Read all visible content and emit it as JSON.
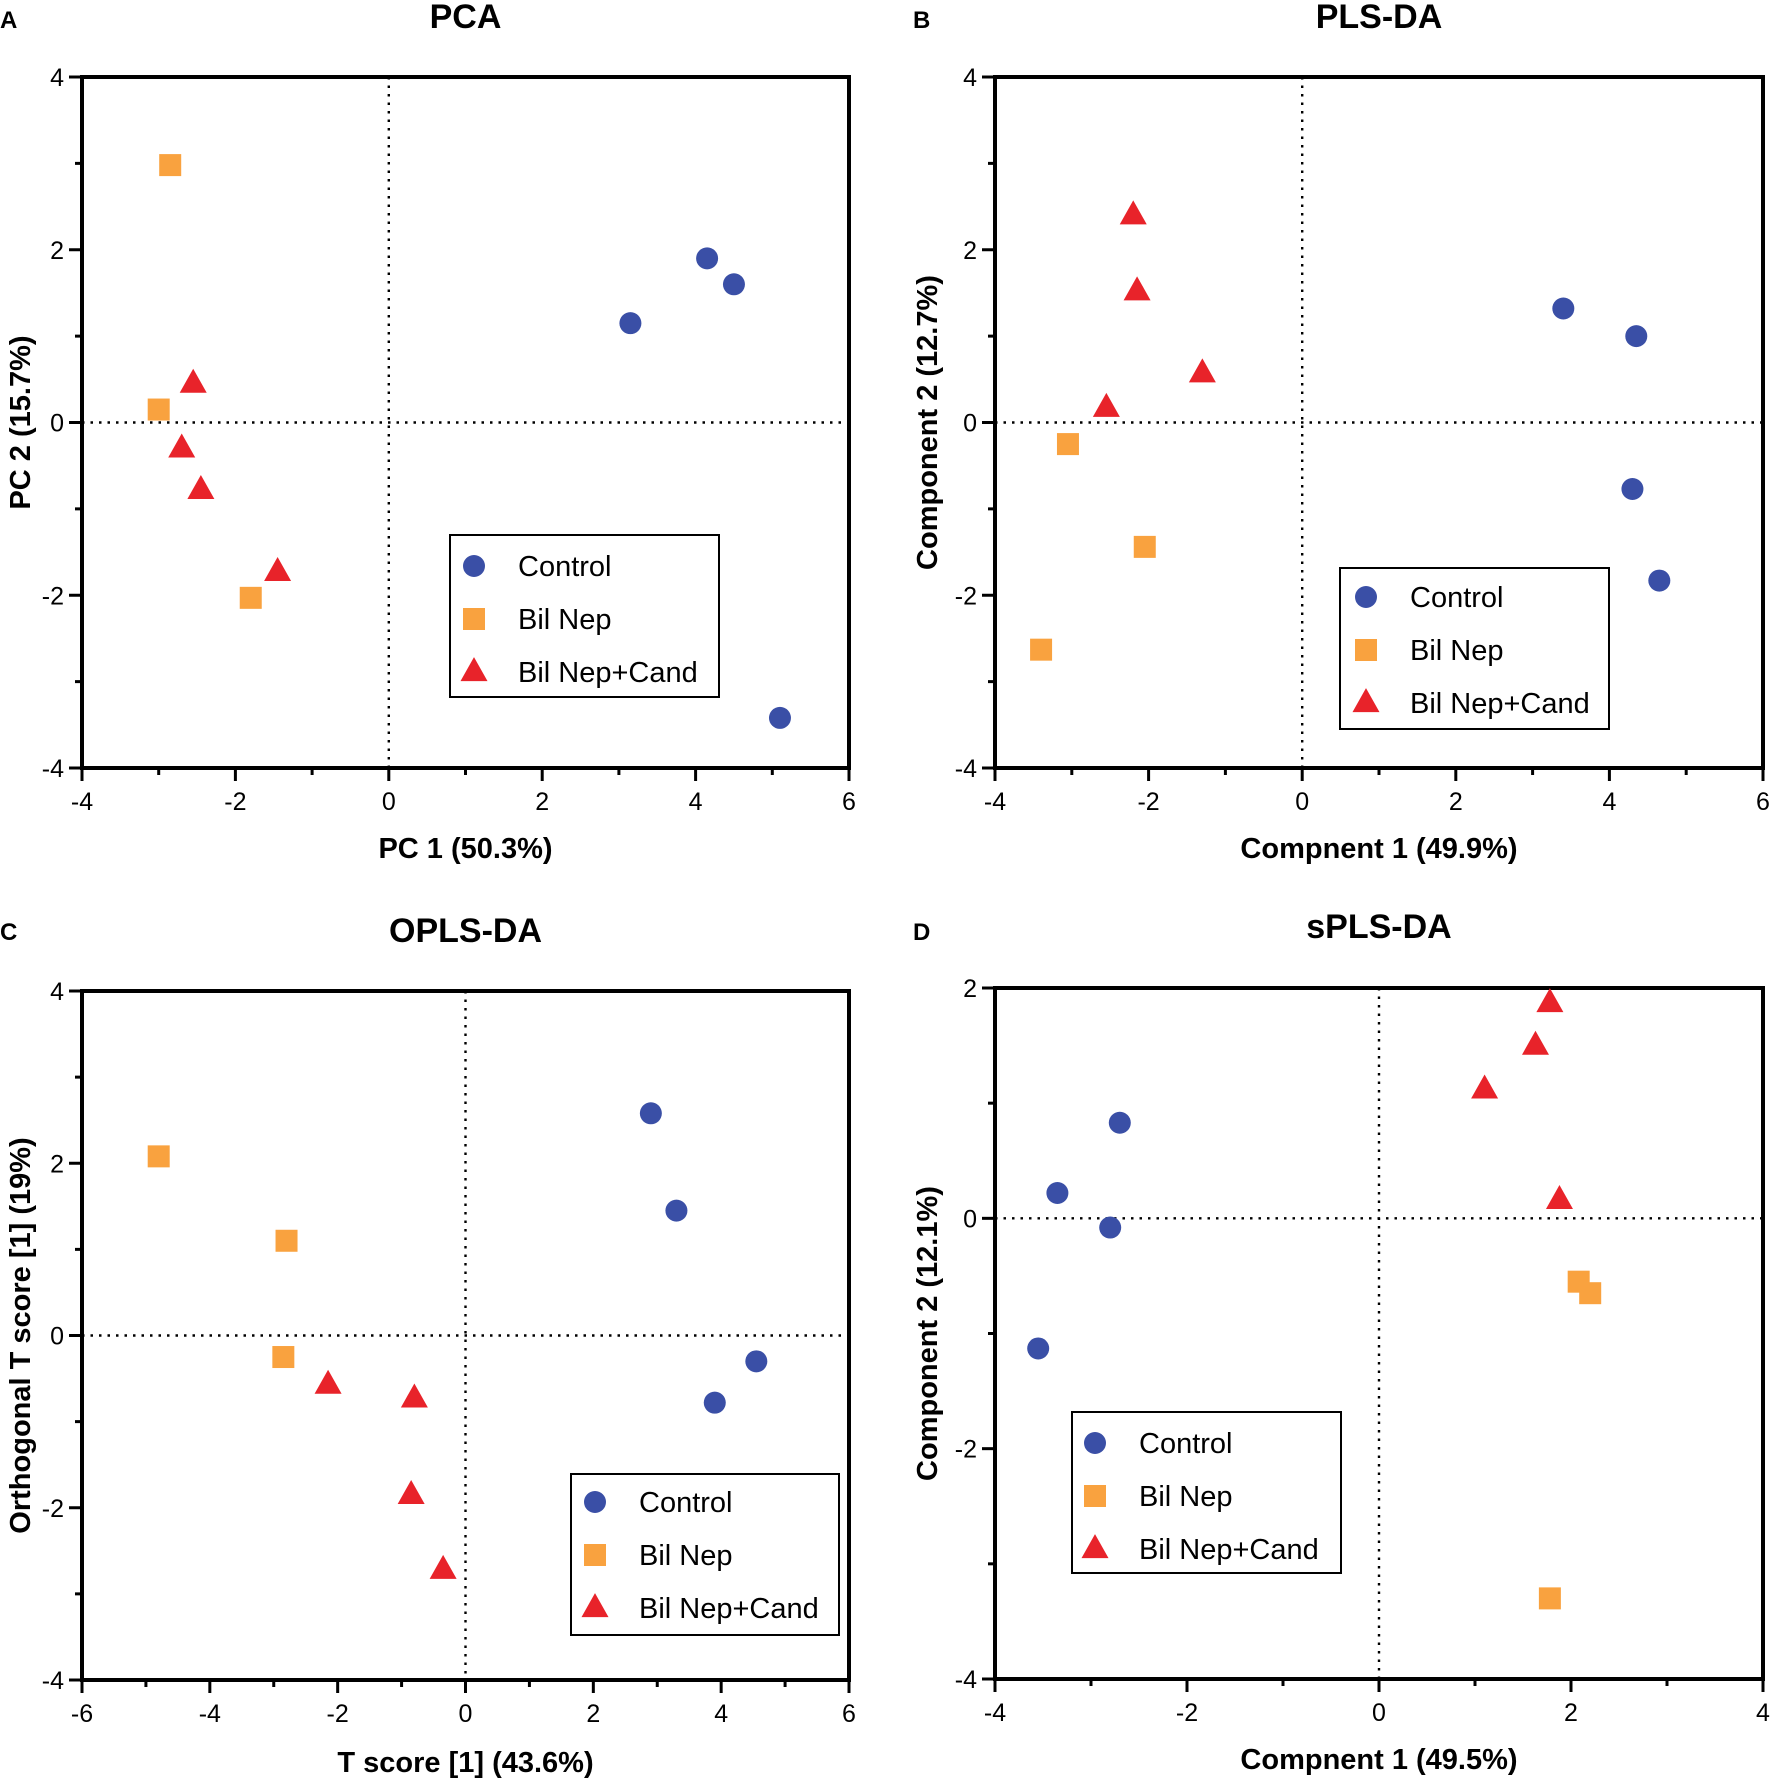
{
  "colors": {
    "control": "#3a4fa6",
    "bil_nep": "#f9a23f",
    "bil_nep_cand": "#e8232a"
  },
  "legend": [
    "Control",
    "Bil Nep",
    "Bil Nep+Cand"
  ],
  "chart_data": [
    {
      "type": "scatter",
      "panel": "A",
      "title": "PCA",
      "xlabel": "PC 1 (50.3%)",
      "ylabel": "PC 2 (15.7%)",
      "xlim": [
        -4,
        6
      ],
      "ylim": [
        -4,
        4
      ],
      "xticks": [
        -4,
        -2,
        0,
        2,
        4,
        6
      ],
      "yticks": [
        4,
        2,
        0,
        -2,
        -4
      ],
      "legend_position": "bottom-right",
      "series": [
        {
          "name": "Control",
          "marker": "circle",
          "points": [
            [
              3.15,
              1.15
            ],
            [
              4.15,
              1.9
            ],
            [
              4.5,
              1.6
            ],
            [
              5.1,
              -3.42
            ]
          ]
        },
        {
          "name": "Bil Nep",
          "marker": "square",
          "points": [
            [
              -2.85,
              2.98
            ],
            [
              -3.0,
              0.15
            ],
            [
              -1.8,
              -2.03
            ]
          ]
        },
        {
          "name": "Bil Nep+Cand",
          "marker": "triangle",
          "points": [
            [
              -2.55,
              0.45
            ],
            [
              -2.7,
              -0.3
            ],
            [
              -2.45,
              -0.78
            ],
            [
              -1.45,
              -1.73
            ]
          ]
        }
      ]
    },
    {
      "type": "scatter",
      "panel": "B",
      "title": "PLS-DA",
      "xlabel": "Compnent 1 (49.9%)",
      "ylabel": "Component 2 (12.7%)",
      "xlim": [
        -4,
        6
      ],
      "ylim": [
        -4,
        4
      ],
      "xticks": [
        -4,
        -2,
        0,
        2,
        4,
        6
      ],
      "yticks": [
        4,
        2,
        0,
        -2,
        -4
      ],
      "legend_position": "bottom-right",
      "series": [
        {
          "name": "Control",
          "marker": "circle",
          "points": [
            [
              3.4,
              1.32
            ],
            [
              4.35,
              1.0
            ],
            [
              4.3,
              -0.77
            ],
            [
              4.65,
              -1.83
            ]
          ]
        },
        {
          "name": "Bil Nep",
          "marker": "square",
          "points": [
            [
              -3.05,
              -0.25
            ],
            [
              -2.05,
              -1.44
            ],
            [
              -3.4,
              -2.63
            ]
          ]
        },
        {
          "name": "Bil Nep+Cand",
          "marker": "triangle",
          "points": [
            [
              -2.2,
              2.4
            ],
            [
              -2.15,
              1.52
            ],
            [
              -1.3,
              0.57
            ],
            [
              -2.55,
              0.17
            ]
          ]
        }
      ]
    },
    {
      "type": "scatter",
      "panel": "C",
      "title": "OPLS-DA",
      "xlabel": "T score [1] (43.6%)",
      "ylabel": "Orthogonal T score [1] (19%)",
      "xlim": [
        -6,
        6
      ],
      "ylim": [
        -4,
        4
      ],
      "xticks": [
        -6,
        -4,
        -2,
        0,
        2,
        4,
        6
      ],
      "yticks": [
        4,
        2,
        0,
        -2,
        -4
      ],
      "legend_position": "bottom-right",
      "series": [
        {
          "name": "Control",
          "marker": "circle",
          "points": [
            [
              2.9,
              2.58
            ],
            [
              3.3,
              1.45
            ],
            [
              4.55,
              -0.3
            ],
            [
              3.9,
              -0.78
            ]
          ]
        },
        {
          "name": "Bil Nep",
          "marker": "square",
          "points": [
            [
              -4.8,
              2.08
            ],
            [
              -2.8,
              1.1
            ],
            [
              -2.85,
              -0.25
            ]
          ]
        },
        {
          "name": "Bil Nep+Cand",
          "marker": "triangle",
          "points": [
            [
              -2.15,
              -0.57
            ],
            [
              -0.8,
              -0.73
            ],
            [
              -0.85,
              -1.85
            ],
            [
              -0.35,
              -2.72
            ]
          ]
        }
      ]
    },
    {
      "type": "scatter",
      "panel": "D",
      "title": "sPLS-DA",
      "xlabel": "Compnent 1 (49.5%)",
      "ylabel": "Component 2 (12.1%)",
      "xlim": [
        -4,
        4
      ],
      "ylim": [
        -4,
        2
      ],
      "xticks": [
        -4,
        -2,
        0,
        2,
        4
      ],
      "yticks": [
        2,
        0,
        -2,
        -4
      ],
      "legend_position": "bottom-left",
      "series": [
        {
          "name": "Control",
          "marker": "circle",
          "points": [
            [
              -2.7,
              0.83
            ],
            [
              -3.35,
              0.22
            ],
            [
              -2.8,
              -0.08
            ],
            [
              -3.55,
              -1.13
            ]
          ]
        },
        {
          "name": "Bil Nep",
          "marker": "square",
          "points": [
            [
              2.08,
              -0.55
            ],
            [
              2.2,
              -0.65
            ],
            [
              1.78,
              -3.3
            ]
          ]
        },
        {
          "name": "Bil Nep+Cand",
          "marker": "triangle",
          "points": [
            [
              1.78,
              1.87
            ],
            [
              1.63,
              1.5
            ],
            [
              1.1,
              1.12
            ],
            [
              1.88,
              0.16
            ]
          ]
        }
      ]
    }
  ]
}
